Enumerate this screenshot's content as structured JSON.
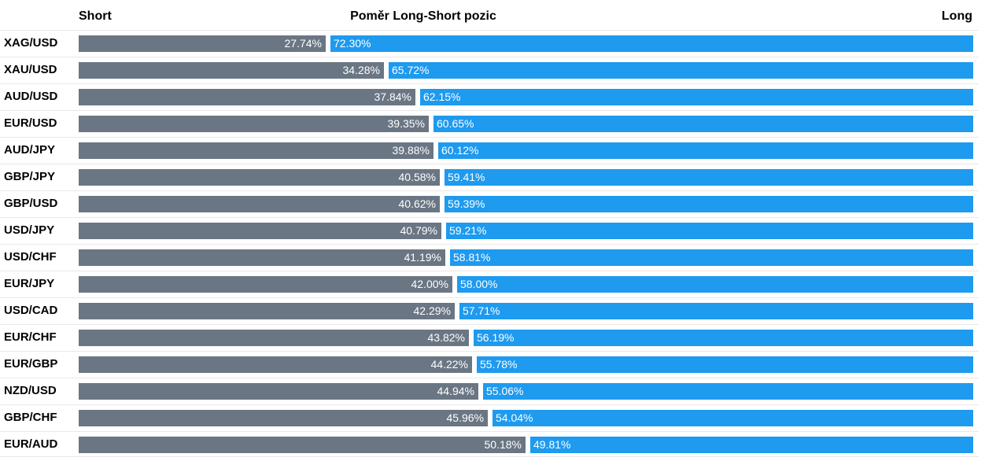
{
  "header": {
    "short_label": "Short",
    "title": "Poměr Long-Short pozic",
    "long_label": "Long"
  },
  "colors": {
    "short": "#6a7683",
    "long": "#1e9aef",
    "bar_text": "#ffffff"
  },
  "chart_data": {
    "type": "bar",
    "orientation": "horizontal-stacked",
    "title": "Poměr Long-Short pozic",
    "categories": [
      "XAG/USD",
      "XAU/USD",
      "AUD/USD",
      "EUR/USD",
      "AUD/JPY",
      "GBP/JPY",
      "GBP/USD",
      "USD/JPY",
      "USD/CHF",
      "EUR/JPY",
      "USD/CAD",
      "EUR/CHF",
      "EUR/GBP",
      "NZD/USD",
      "GBP/CHF",
      "EUR/AUD"
    ],
    "series": [
      {
        "name": "Short",
        "values": [
          27.74,
          34.28,
          37.84,
          39.35,
          39.88,
          40.58,
          40.62,
          40.79,
          41.19,
          42.0,
          42.29,
          43.82,
          44.22,
          44.94,
          45.96,
          50.18
        ]
      },
      {
        "name": "Long",
        "values": [
          72.3,
          65.72,
          62.15,
          60.65,
          60.12,
          59.41,
          59.39,
          59.21,
          58.81,
          58.0,
          57.71,
          56.19,
          55.78,
          55.06,
          54.04,
          49.81
        ]
      }
    ],
    "labels": {
      "short": [
        "27.74%",
        "34.28%",
        "37.84%",
        "39.35%",
        "39.88%",
        "40.58%",
        "40.62%",
        "40.79%",
        "41.19%",
        "42.00%",
        "42.29%",
        "43.82%",
        "44.22%",
        "44.94%",
        "45.96%",
        "50.18%"
      ],
      "long": [
        "72.30%",
        "65.72%",
        "62.15%",
        "60.65%",
        "60.12%",
        "59.41%",
        "59.39%",
        "59.21%",
        "58.81%",
        "58.00%",
        "57.71%",
        "56.19%",
        "55.78%",
        "55.06%",
        "54.04%",
        "49.81%"
      ]
    },
    "xlim": [
      0,
      100
    ],
    "grid": false,
    "legend": "top"
  }
}
